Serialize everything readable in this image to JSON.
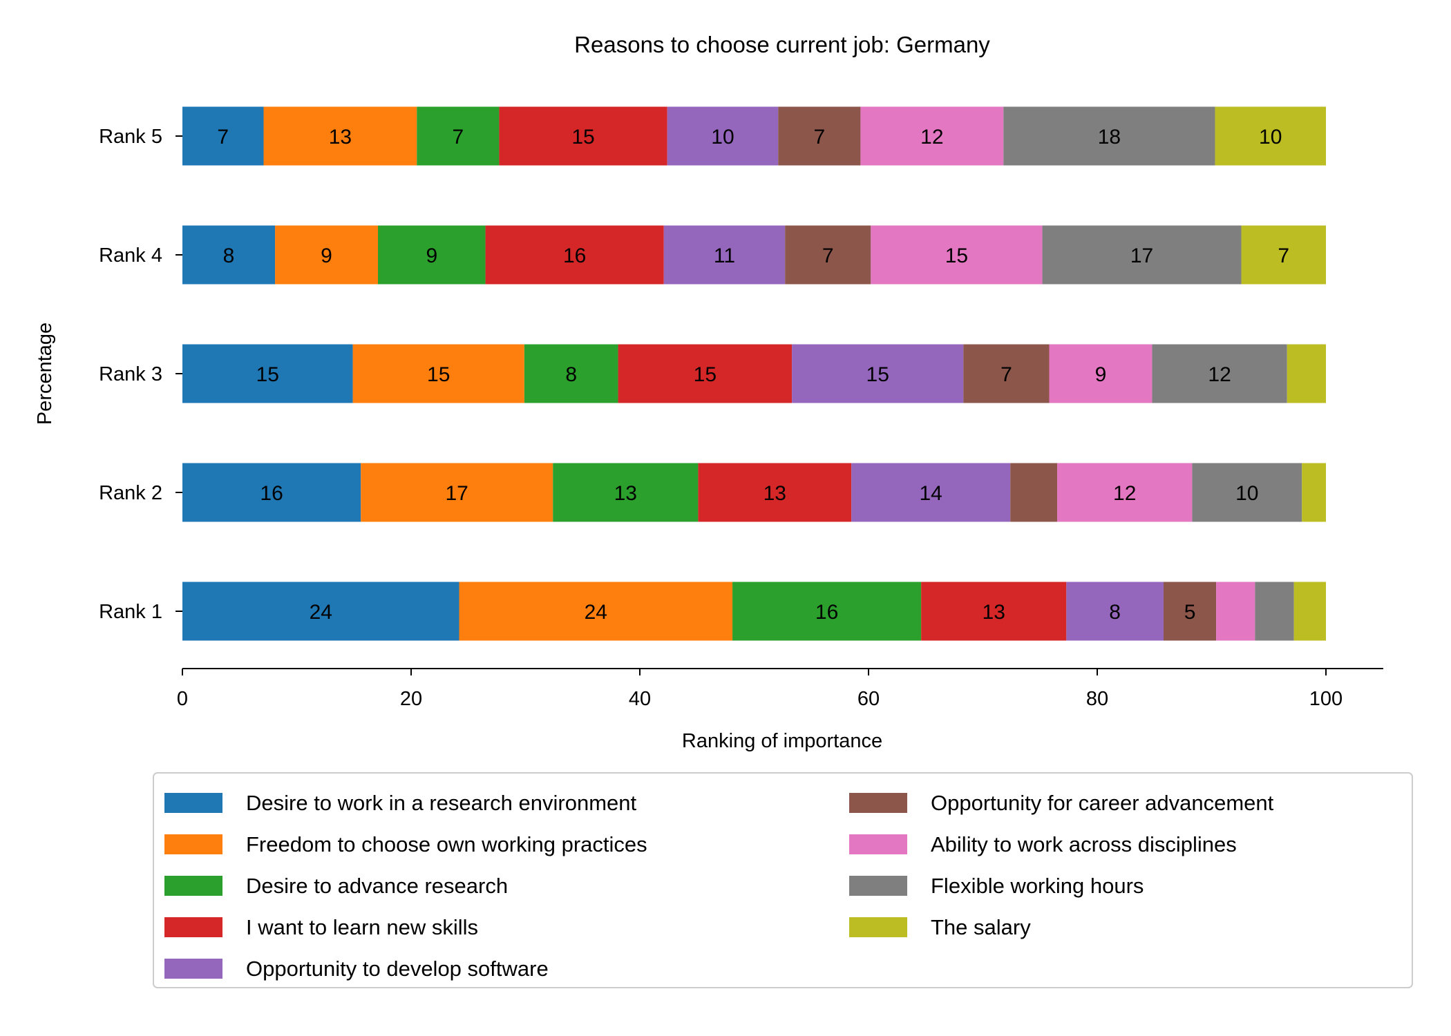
{
  "chart_data": {
    "type": "bar",
    "orientation": "horizontal",
    "stacked": true,
    "title": "Reasons to choose current job: Germany",
    "xlabel": "Ranking of importance",
    "ylabel": "Percentage",
    "xlim": [
      0,
      105
    ],
    "xticks": [
      "0",
      "20",
      "40",
      "60",
      "80",
      "100"
    ],
    "grid": false,
    "legend_position": "bottom",
    "categories": [
      "Rank 1",
      "Rank 2",
      "Rank 3",
      "Rank 4",
      "Rank 5"
    ],
    "series": [
      {
        "name": "Desire to work in a research environment",
        "color": "#1f77b4",
        "values": [
          24.2,
          15.6,
          14.9,
          8.1,
          7.1
        ],
        "labels": [
          "24",
          "16",
          "15",
          "8",
          "7"
        ]
      },
      {
        "name": "Freedom to choose own working practices",
        "color": "#ff7f0e",
        "values": [
          23.9,
          16.8,
          15.0,
          9.0,
          13.4
        ],
        "labels": [
          "24",
          "17",
          "15",
          "9",
          "13"
        ]
      },
      {
        "name": "Desire to advance research",
        "color": "#2ca02c",
        "values": [
          16.5,
          12.7,
          8.2,
          9.4,
          7.2
        ],
        "labels": [
          "16",
          "13",
          "8",
          "9",
          "7"
        ]
      },
      {
        "name": "I want to learn new skills",
        "color": "#d62728",
        "values": [
          12.7,
          13.4,
          15.2,
          15.6,
          14.7
        ],
        "labels": [
          "13",
          "13",
          "15",
          "16",
          "15"
        ]
      },
      {
        "name": "Opportunity to develop software",
        "color": "#9467bd",
        "values": [
          8.5,
          13.9,
          15.0,
          10.6,
          9.7
        ],
        "labels": [
          "8",
          "14",
          "15",
          "11",
          "10"
        ]
      },
      {
        "name": "Opportunity for career advancement",
        "color": "#8c564b",
        "values": [
          4.6,
          4.1,
          7.5,
          7.5,
          7.2
        ],
        "labels": [
          "5",
          "",
          "7",
          "7",
          "7"
        ]
      },
      {
        "name": "Ability to work across disciplines",
        "color": "#e377c2",
        "values": [
          3.4,
          11.8,
          9.0,
          15.0,
          12.5
        ],
        "labels": [
          "",
          "12",
          "9",
          "15",
          "12"
        ]
      },
      {
        "name": "Flexible working hours",
        "color": "#7f7f7f",
        "values": [
          3.4,
          9.6,
          11.8,
          17.4,
          18.5
        ],
        "labels": [
          "",
          "10",
          "12",
          "17",
          "18"
        ]
      },
      {
        "name": "The salary",
        "color": "#bcbd22",
        "values": [
          2.8,
          2.1,
          3.4,
          7.4,
          9.7
        ],
        "labels": [
          "",
          "",
          "",
          "7",
          "10"
        ]
      }
    ]
  }
}
